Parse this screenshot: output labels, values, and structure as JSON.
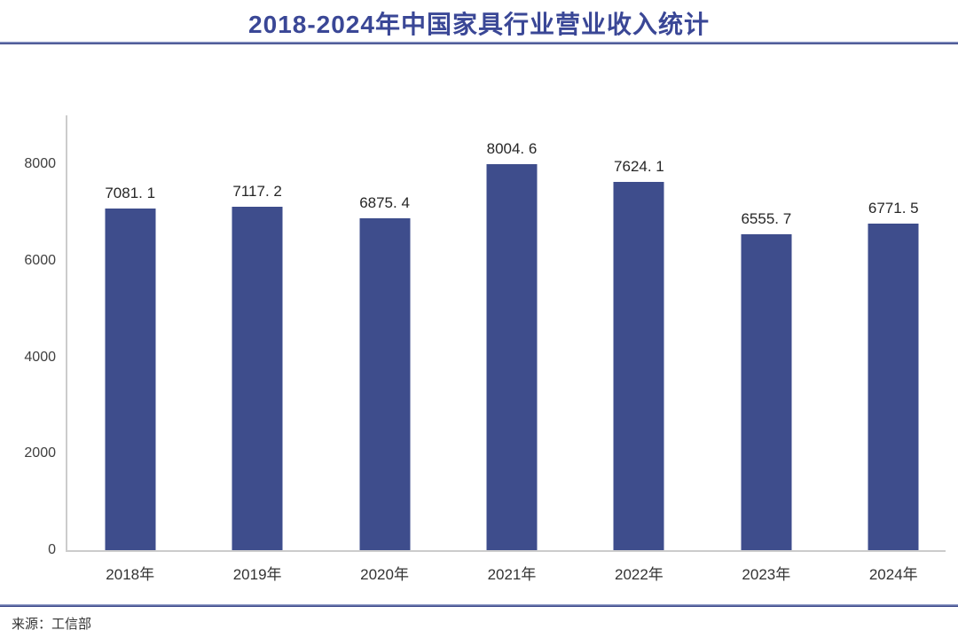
{
  "header": {
    "title": "2018-2024年中国家具行业营业收入统计"
  },
  "footer": {
    "source": "来源：工信部"
  },
  "colors": {
    "title": "#3A4796",
    "bar": "#3E4D8C",
    "divider_light": "#98A3CF",
    "divider_dark": "#2E3B7E",
    "axis": "#CCCCCC",
    "value_label": "#262626",
    "tick_label": "#404040"
  },
  "chart_data": {
    "type": "bar",
    "title": "2018-2024年中国家具行业营业收入统计",
    "categories": [
      "2018年",
      "2019年",
      "2020年",
      "2021年",
      "2022年",
      "2023年",
      "2024年"
    ],
    "values": [
      7081.1,
      7117.2,
      6875.4,
      8004.6,
      7624.1,
      6555.7,
      6771.5
    ],
    "value_labels": [
      "7081. 1",
      "7117. 2",
      "6875. 4",
      "8004. 6",
      "7624. 1",
      "6555. 7",
      "6771. 5"
    ],
    "xlabel": "",
    "ylabel": "",
    "y_ticks": [
      0,
      2000,
      4000,
      6000,
      8000
    ],
    "ylim": [
      0,
      9000
    ],
    "grid": false,
    "legend": false,
    "source": "来源：工信部"
  }
}
